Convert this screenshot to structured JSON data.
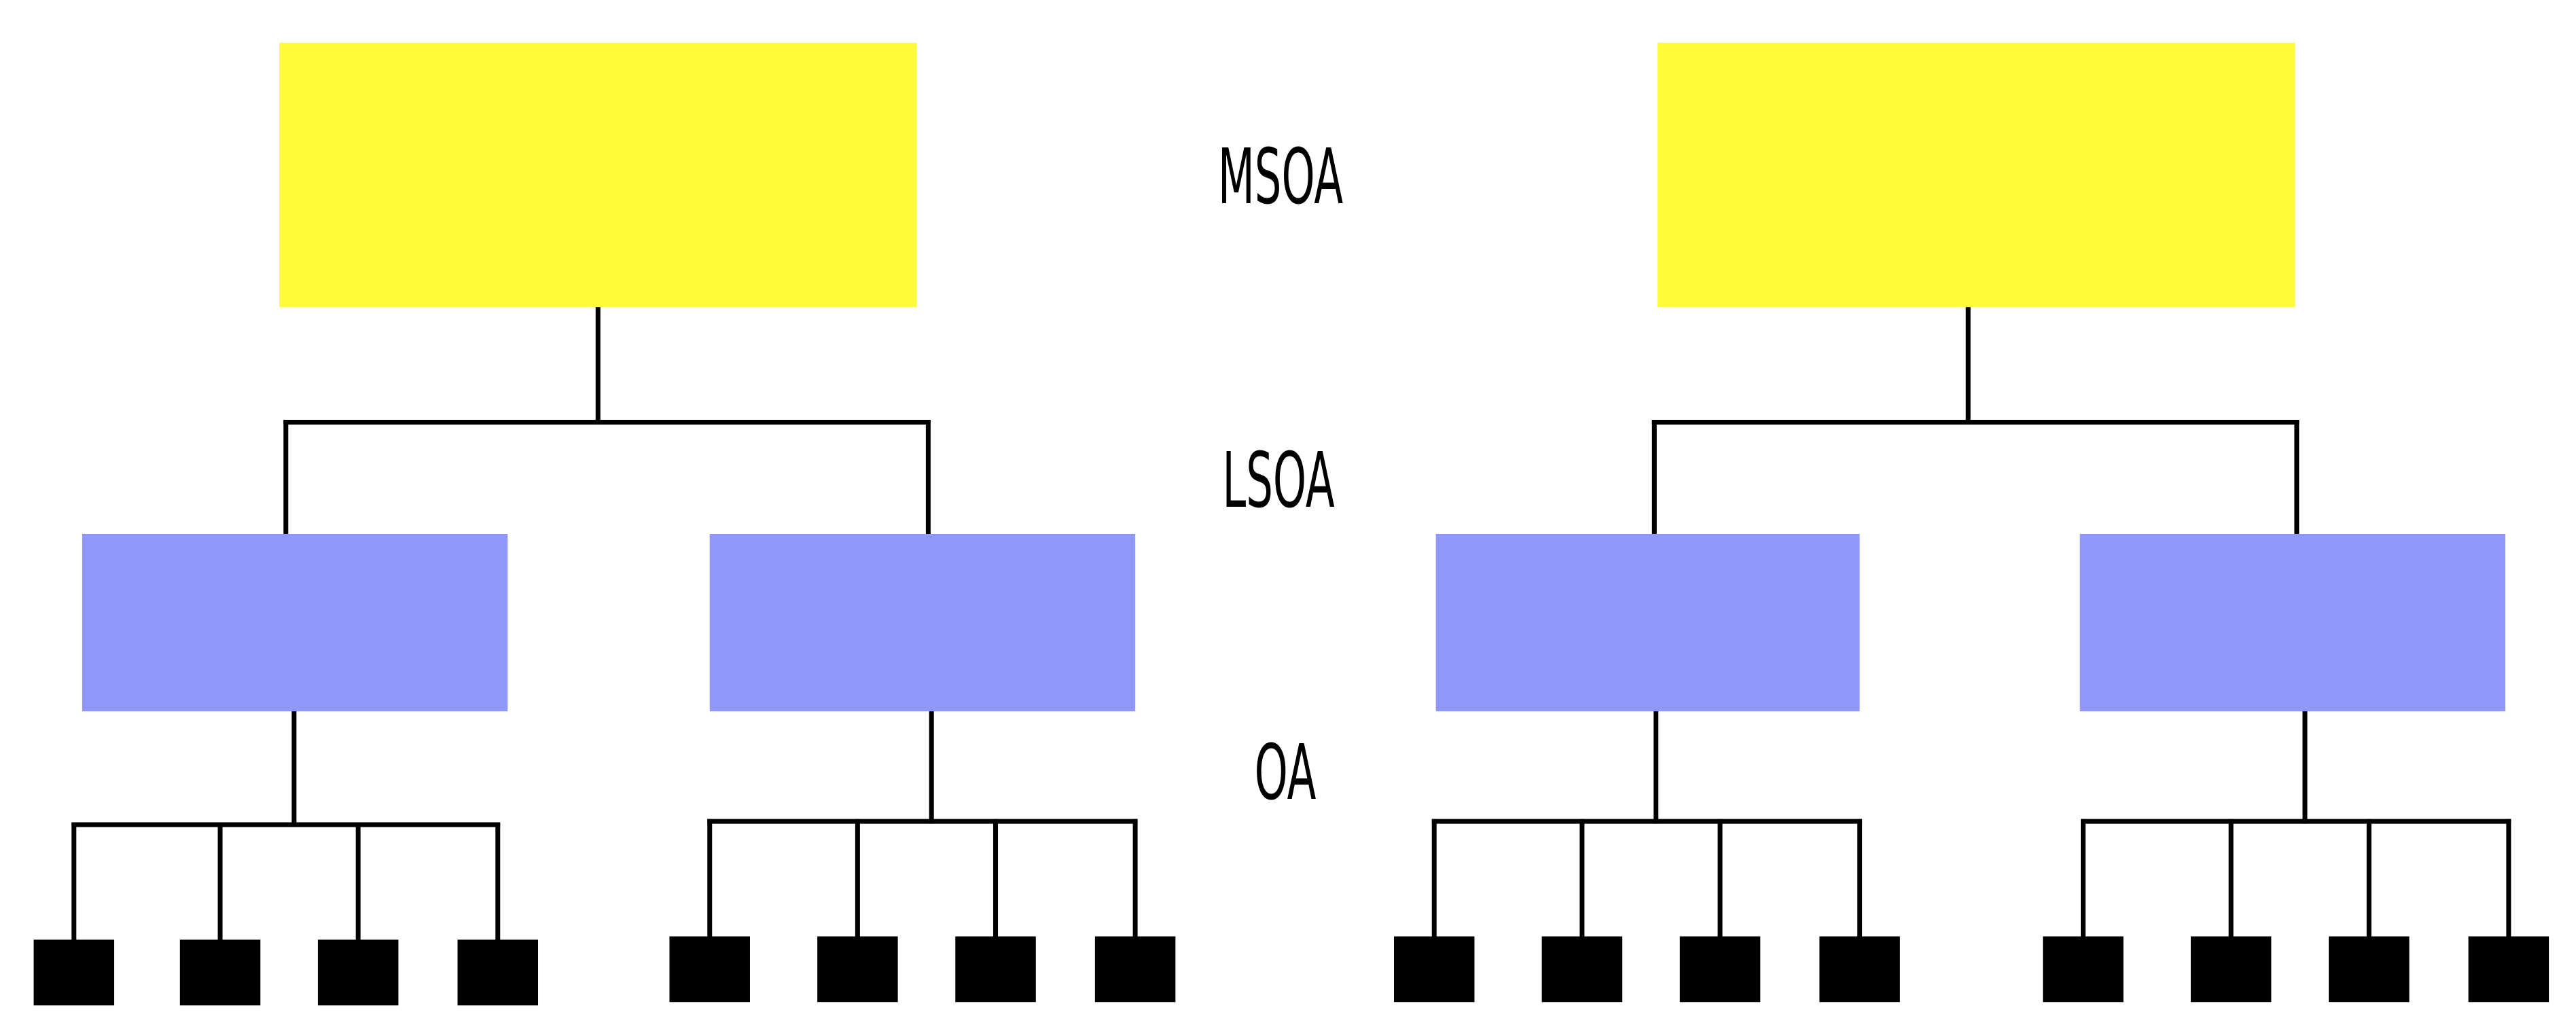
{
  "level_labels": {
    "msoa": "MSOA",
    "lsoa": "LSOA",
    "oa": "OA"
  },
  "colors": {
    "msoa_fill": "#fdfb3a",
    "lsoa_fill": "#9099fb",
    "oa_fill": "#000000",
    "connector": "#000000",
    "background": "#ffffff"
  },
  "hierarchy": {
    "msoa_count": 2,
    "lsoa_per_msoa": 2,
    "oa_per_lsoa": 4
  }
}
